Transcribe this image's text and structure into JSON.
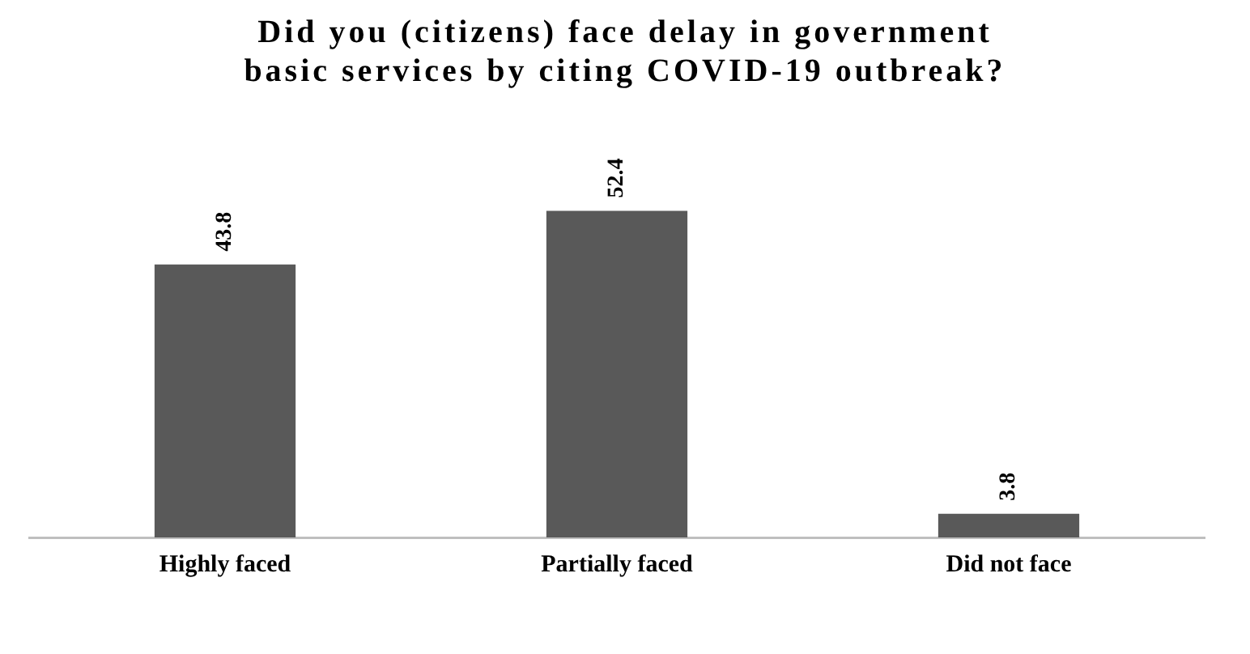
{
  "chart_data": {
    "type": "bar",
    "title": "Did you (citizens) face delay in government basic services by citing COVID-19 outbreak?",
    "categories": [
      "Highly faced",
      "Partially faced",
      "Did not face"
    ],
    "values": [
      43.8,
      52.4,
      3.8
    ],
    "color": "#595959",
    "data_labels": true,
    "tick_labels": "x",
    "grid": false,
    "legend": false
  }
}
